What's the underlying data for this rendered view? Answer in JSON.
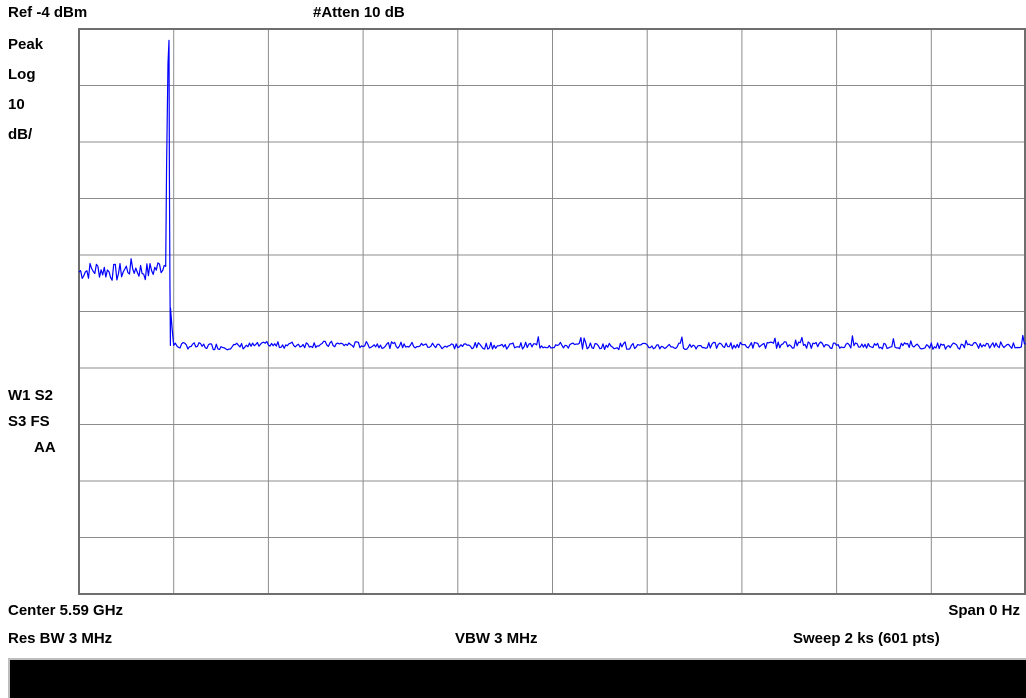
{
  "header": {
    "ref_level": "Ref -4 dBm",
    "attenuation": "#Atten 10 dB"
  },
  "left_panel": {
    "detector": "Peak",
    "scale_type": "Log",
    "scale_value": "10",
    "scale_unit": "dB/",
    "trace_flags_1": "W1  S2",
    "trace_flags_2": "S3  FS",
    "trace_flags_3": "AA"
  },
  "footer": {
    "center": "Center 5.59 GHz",
    "span": "Span 0 Hz",
    "res_bw": "Res BW 3 MHz",
    "vbw": "VBW 3 MHz",
    "sweep": "Sweep 2 ks (601 pts)"
  },
  "colors": {
    "trace": "#0000ff",
    "grid": "#8c8c8c",
    "status_bar": "#000000"
  },
  "chart_data": {
    "type": "line",
    "title": "",
    "xlabel": "",
    "ylabel": "",
    "x_unit": "s",
    "y_unit": "dBm",
    "xlim": [
      0,
      2000
    ],
    "ylim": [
      -104,
      -4
    ],
    "grid": true,
    "series": [
      {
        "x": [
          0,
          40,
          80,
          110,
          140,
          160,
          185,
          200,
          300,
          500,
          800,
          1000,
          1200,
          1500,
          1800,
          2000
        ],
        "values": [
          -47,
          -46.5,
          -47.2,
          -46.2,
          -47,
          -46.5,
          -45.5,
          -60,
          -60.2,
          -59.8,
          -60.1,
          -60,
          -60.2,
          -59.9,
          -60.1,
          -60
        ],
        "peaks": [
          {
            "x": 190,
            "value": -6
          },
          {
            "x": 185,
            "value": -28
          }
        ]
      }
    ]
  }
}
